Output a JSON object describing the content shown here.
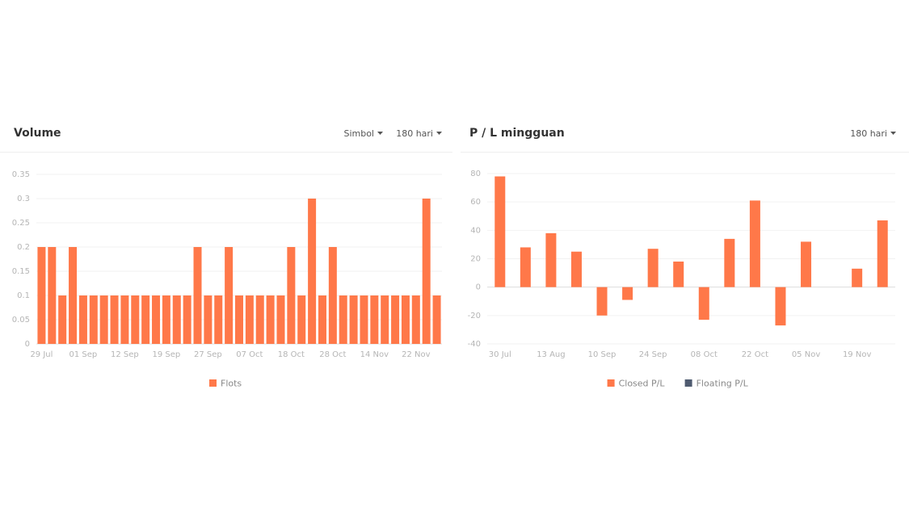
{
  "chart_data": [
    {
      "type": "bar",
      "title": "Volume",
      "controls": [
        "Simbol",
        "180 hari"
      ],
      "categories": [
        "29 Jul",
        null,
        null,
        null,
        "01 Sep",
        null,
        null,
        null,
        "12 Sep",
        null,
        null,
        null,
        "19 Sep",
        null,
        null,
        null,
        "27 Sep",
        null,
        null,
        null,
        "07 Oct",
        null,
        null,
        null,
        "18 Oct",
        null,
        null,
        null,
        "28 Oct",
        null,
        null,
        null,
        "14 Nov",
        null,
        null,
        null,
        "22 Nov",
        null,
        null
      ],
      "series": [
        {
          "name": "Flots",
          "color": "#ff7849",
          "values": [
            0.2,
            0.2,
            0.1,
            0.2,
            0.1,
            0.1,
            0.1,
            0.1,
            0.1,
            0.1,
            0.1,
            0.1,
            0.1,
            0.1,
            0.1,
            0.2,
            0.1,
            0.1,
            0.2,
            0.1,
            0.1,
            0.1,
            0.1,
            0.1,
            0.2,
            0.1,
            0.3,
            0.1,
            0.2,
            0.1,
            0.1,
            0.1,
            0.1,
            0.1,
            0.1,
            0.1,
            0.1,
            0.3,
            0.1
          ]
        }
      ],
      "ylim": [
        0,
        0.35
      ],
      "yticks": [
        0,
        0.05,
        0.1,
        0.15,
        0.2,
        0.25,
        0.3,
        0.35
      ],
      "grid": true
    },
    {
      "type": "bar",
      "title": "P / L mingguan",
      "controls": [
        "180 hari"
      ],
      "categories": [
        "30 Jul",
        null,
        "13 Aug",
        null,
        "10 Sep",
        null,
        "24 Sep",
        null,
        "08 Oct",
        null,
        "22 Oct",
        null,
        "05 Nov",
        null,
        "19 Nov",
        null
      ],
      "series": [
        {
          "name": "Closed P/L",
          "color": "#ff7849",
          "values": [
            78,
            28,
            38,
            25,
            -20,
            -9,
            27,
            18,
            -23,
            34,
            61,
            -27,
            32,
            null,
            13,
            47
          ]
        },
        {
          "name": "Floating P/L",
          "color": "#4f5b70",
          "values": [
            null,
            null,
            null,
            null,
            null,
            null,
            null,
            null,
            null,
            null,
            null,
            null,
            null,
            null,
            null,
            null
          ]
        }
      ],
      "ylim": [
        -40,
        80
      ],
      "yticks": [
        -40,
        -20,
        0,
        20,
        40,
        60,
        80
      ],
      "grid": true
    }
  ]
}
